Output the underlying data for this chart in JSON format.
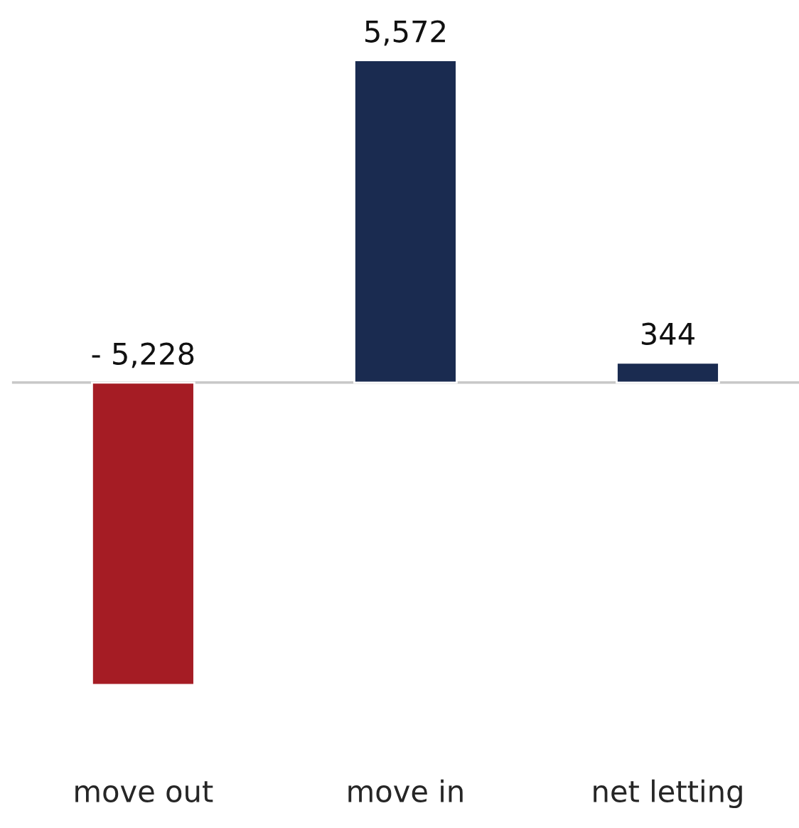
{
  "chart_data": {
    "type": "bar",
    "categories": [
      "move out",
      "move in",
      "net letting"
    ],
    "values": [
      -5228,
      5572,
      344
    ],
    "colors": [
      "#a51c24",
      "#1a2b50",
      "#1a2b50"
    ],
    "value_labels": [
      "- 5,228",
      "5,572",
      "344"
    ],
    "grid": false,
    "legend": false
  }
}
